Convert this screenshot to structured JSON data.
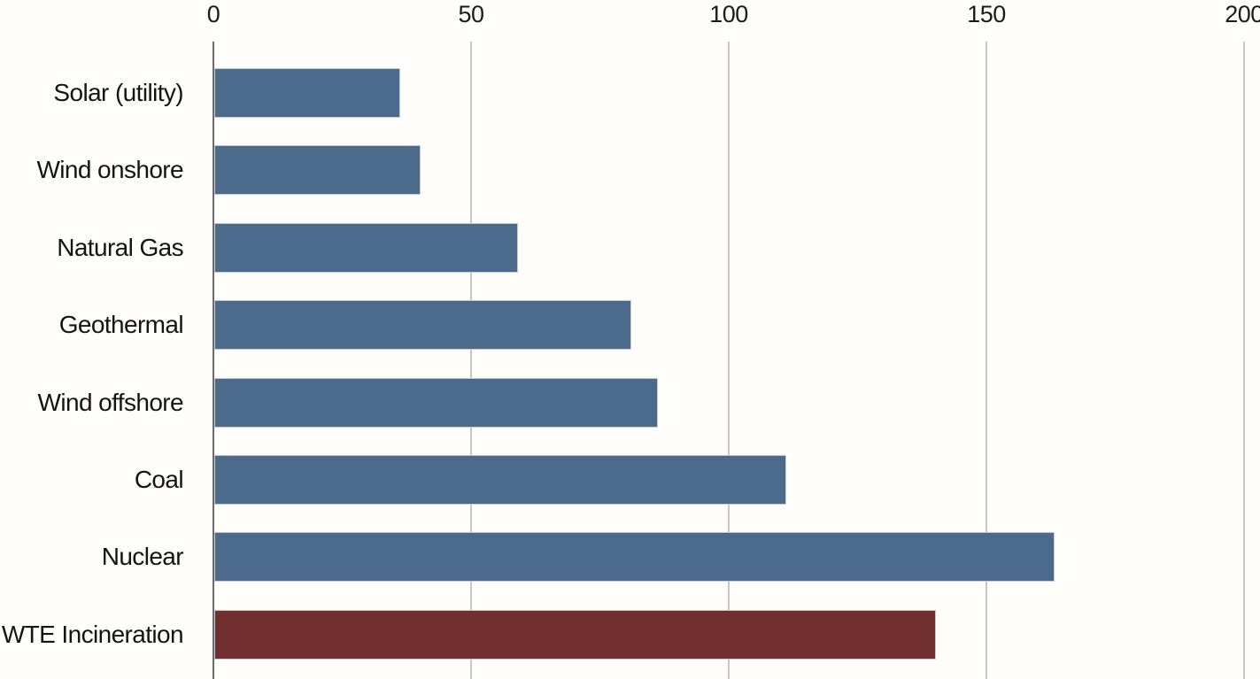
{
  "chart_data": {
    "type": "bar",
    "orientation": "horizontal",
    "title": "",
    "xlabel": "",
    "ylabel": "",
    "x_axis_position": "top",
    "xlim": [
      0,
      200
    ],
    "x_ticks": [
      "0",
      "50",
      "100",
      "150",
      "200"
    ],
    "grid": true,
    "legend": null,
    "categories": [
      "Solar (utility)",
      "Wind onshore",
      "Natural Gas",
      "Geothermal",
      "Wind offshore",
      "Coal",
      "Nuclear",
      "WTE Incineration"
    ],
    "values": [
      36,
      40,
      59,
      81,
      86,
      111,
      163,
      140
    ],
    "highlight_category": "WTE Incineration",
    "colors": {
      "bar": "#4c6b8c",
      "highlight_bar": "#722f2f",
      "bar_border": "#c6cbd3",
      "axis_line": "#6a6a6a",
      "gridline": "#ccc5c5",
      "tick_label": "#1b1b1b",
      "category_label": "#141414",
      "background": "#fffefa"
    }
  }
}
